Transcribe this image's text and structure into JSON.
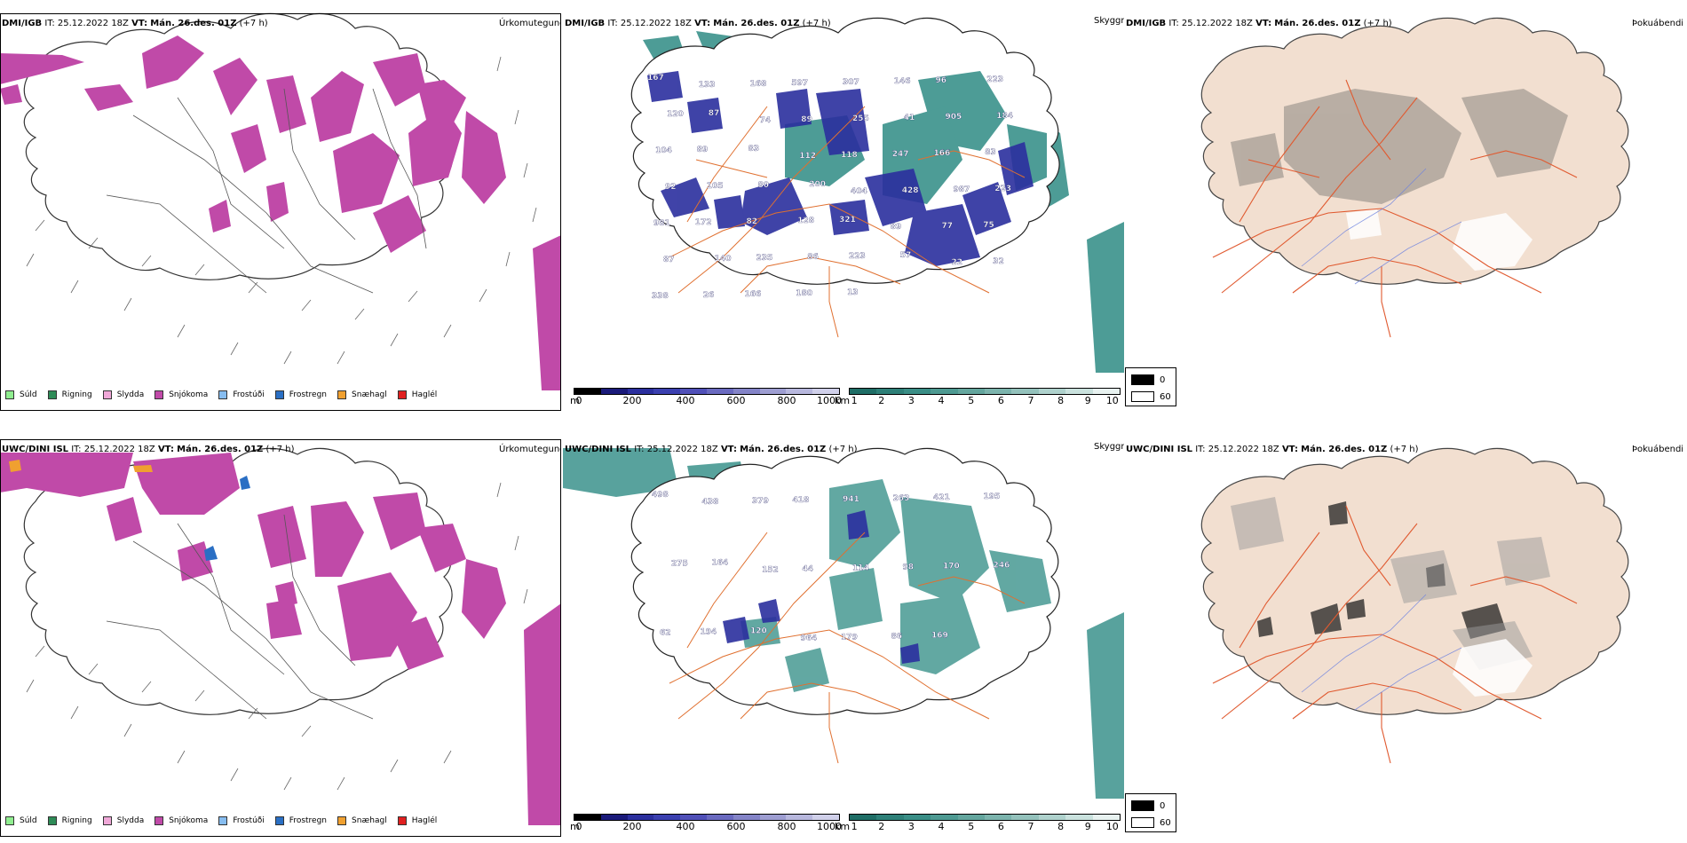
{
  "top": {
    "precip": {
      "model": "DMI/IGB",
      "it": "IT: 25.12.2022 18Z",
      "vt_label": "VT:",
      "vt": "Mán. 26.des. 01Z",
      "lead": "(+7 h)",
      "right": "Úrkomutegund"
    },
    "cloud": {
      "model": "DMI/IGB",
      "it": "IT: 25.12.2022 18Z",
      "vt_label": "VT:",
      "vt": "Mán. 26.des. 01Z",
      "lead": "(+7 h)",
      "right": "Skyggni"
    },
    "fog": {
      "model": "DMI/IGB",
      "it": "IT: 25.12.2022 18Z",
      "vt_label": "VT:",
      "vt": "Mán. 26.des. 01Z",
      "lead": "(+7 h)",
      "right": "Þokuábendi"
    },
    "ceiling_labels": [
      "167",
      "133",
      "168",
      "597",
      "307",
      "146",
      "96",
      "223",
      "120",
      "87",
      "74",
      "89",
      "255",
      "41",
      "905",
      "184",
      "104",
      "89",
      "83",
      "112",
      "118",
      "247",
      "166",
      "83",
      "92",
      "105",
      "80",
      "200",
      "404",
      "428",
      "987",
      "223",
      "981",
      "172",
      "82",
      "128",
      "321",
      "89",
      "77",
      "75",
      "87",
      "140",
      "235",
      "86",
      "223",
      "57",
      "22",
      "32",
      "338",
      "26",
      "166",
      "180",
      "13"
    ]
  },
  "bottom": {
    "precip": {
      "model": "UWC/DINI ISL",
      "it": "IT: 25.12.2022 18Z",
      "vt_label": "VT:",
      "vt": "Mán. 26.des. 01Z",
      "lead": "(+7 h)",
      "right": "Úrkomutegund"
    },
    "cloud": {
      "model": "UWC/DINI ISL",
      "it": "IT: 25.12.2022 18Z",
      "vt_label": "VT:",
      "vt": "Mán. 26.des. 01Z",
      "lead": "(+7 h)",
      "right": "Skyggni"
    },
    "fog": {
      "model": "UWC/DINI ISL",
      "it": "IT: 25.12.2022 18Z",
      "vt_label": "VT:",
      "vt": "Mán. 26.des. 01Z",
      "lead": "(+7 h)",
      "right": "Þokuábendi"
    },
    "ceiling_labels": [
      "498",
      "438",
      "379",
      "418",
      "941",
      "263",
      "421",
      "195",
      "275",
      "164",
      "152",
      "44",
      "114",
      "98",
      "170",
      "246",
      "62",
      "194",
      "120",
      "964",
      "179",
      "86",
      "169"
    ]
  },
  "precip_legend": [
    {
      "label": "Súld",
      "color": "#90ee90"
    },
    {
      "label": "Rigning",
      "color": "#2e8b57"
    },
    {
      "label": "Slydda",
      "color": "#f0a8d8"
    },
    {
      "label": "Snjókoma",
      "color": "#c04aa8"
    },
    {
      "label": "Frostúði",
      "color": "#87bdf0"
    },
    {
      "label": "Frostregn",
      "color": "#2a6fc4"
    },
    {
      "label": "Snæhagl",
      "color": "#f0a030"
    },
    {
      "label": "Haglél",
      "color": "#e02020"
    }
  ],
  "ceiling_scale": {
    "unit": "m",
    "ticks": [
      "0",
      "200",
      "400",
      "600",
      "800",
      "1000"
    ]
  },
  "visibility_scale": {
    "unit": "km",
    "ticks": [
      "1",
      "2",
      "3",
      "4",
      "5",
      "6",
      "7",
      "8",
      "9",
      "10"
    ]
  },
  "fog_legend": {
    "high": "0",
    "low": "60"
  },
  "colors": {
    "snow": "#c04aa8",
    "teal": "#2e8b84",
    "navy": "#2b2f9e",
    "land": "#f2dfd0",
    "road": "#e07030"
  }
}
